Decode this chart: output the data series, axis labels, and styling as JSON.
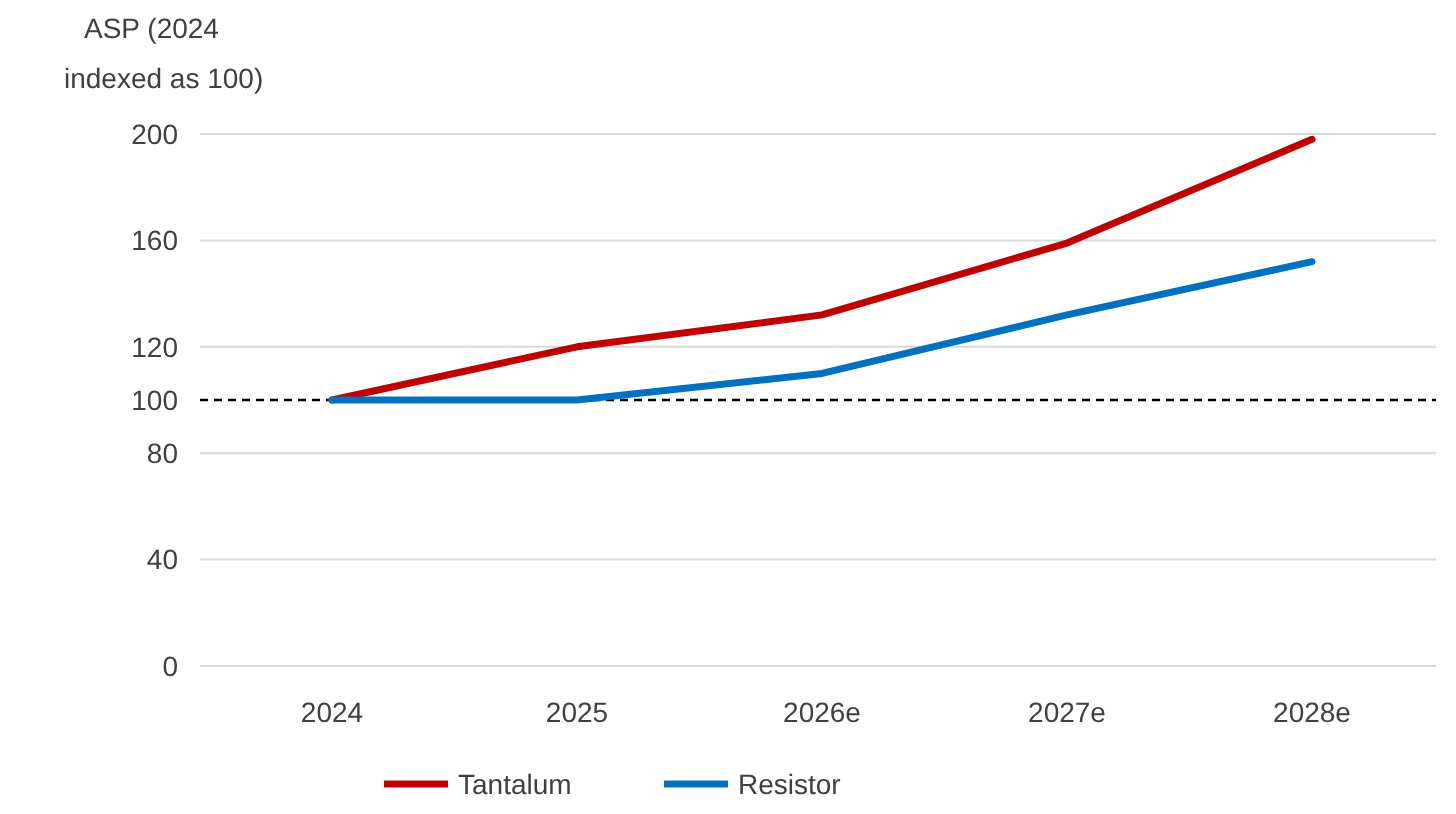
{
  "chart_data": {
    "type": "line",
    "ylabel": "ASP (2024 indexed as 100)",
    "categories": [
      "2024",
      "2025",
      "2026e",
      "2027e",
      "2028e"
    ],
    "series": [
      {
        "name": "Tantalum",
        "color": "#c00000",
        "values": [
          100,
          120,
          132,
          159,
          198
        ]
      },
      {
        "name": "Resistor",
        "color": "#0070c0",
        "values": [
          100,
          100,
          110,
          132,
          152
        ]
      }
    ],
    "ylim": [
      0,
      200
    ],
    "yticks": [
      0,
      40,
      80,
      100,
      120,
      160,
      200
    ],
    "grid": "y",
    "legend": "bottom",
    "line_style": "solid",
    "ref_lines": [
      {
        "axis": "y",
        "value": 100,
        "color": "#000000",
        "line_style": "dashed"
      }
    ]
  }
}
